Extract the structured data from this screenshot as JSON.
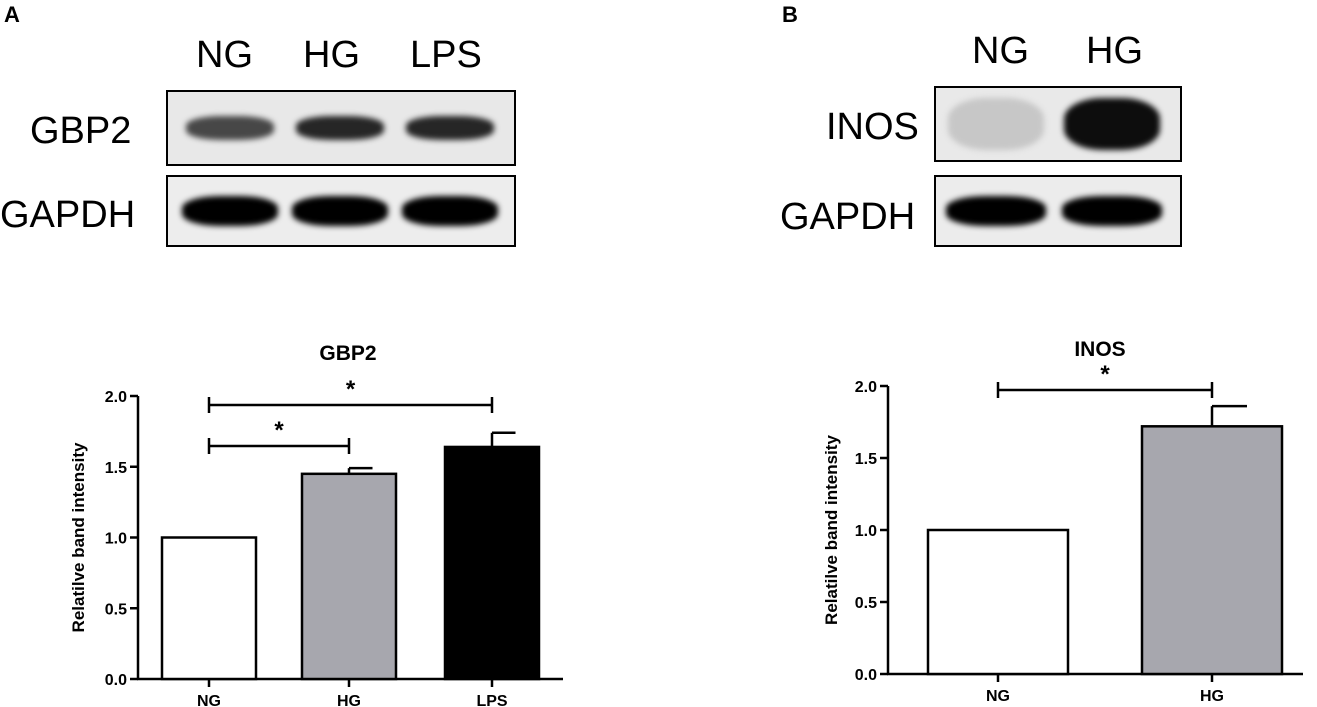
{
  "panels": {
    "a": {
      "letter": "A",
      "lanes": [
        "NG",
        "HG",
        "LPS"
      ],
      "blots": [
        {
          "label": "GBP2",
          "band_darkness": [
            0.72,
            0.85,
            0.85
          ]
        },
        {
          "label": "GAPDH",
          "band_darkness": [
            1.0,
            1.0,
            1.0
          ]
        }
      ]
    },
    "b": {
      "letter": "B",
      "lanes": [
        "NG",
        "HG"
      ],
      "blots": [
        {
          "label": "INOS",
          "band_darkness": [
            0.22,
            0.95
          ]
        },
        {
          "label": "GAPDH",
          "band_darkness": [
            1.0,
            1.0
          ]
        }
      ]
    }
  },
  "chart_data": [
    {
      "type": "bar",
      "title": "GBP2",
      "ylabel": "Relatilve band intensity",
      "categories": [
        "NG",
        "HG",
        "LPS"
      ],
      "values": [
        1.0,
        1.45,
        1.64
      ],
      "errors": [
        0.0,
        0.04,
        0.1
      ],
      "bar_colors": [
        "#ffffff",
        "#a7a7ae",
        "#000000"
      ],
      "ylim": [
        0,
        2.0
      ],
      "yticks": [
        "0.0",
        "0.5",
        "1.0",
        "1.5",
        "2.0"
      ],
      "significance": [
        {
          "from": "NG",
          "to": "HG",
          "label": "*"
        },
        {
          "from": "NG",
          "to": "LPS",
          "label": "*"
        }
      ]
    },
    {
      "type": "bar",
      "title": "INOS",
      "ylabel": "Relatilve band intensity",
      "categories": [
        "NG",
        "HG"
      ],
      "values": [
        1.0,
        1.72
      ],
      "errors": [
        0.0,
        0.14
      ],
      "bar_colors": [
        "#ffffff",
        "#a7a7ae"
      ],
      "ylim": [
        0,
        2.0
      ],
      "yticks": [
        "0.0",
        "0.5",
        "1.0",
        "1.5",
        "2.0"
      ],
      "significance": [
        {
          "from": "NG",
          "to": "HG",
          "label": "*"
        }
      ]
    }
  ]
}
